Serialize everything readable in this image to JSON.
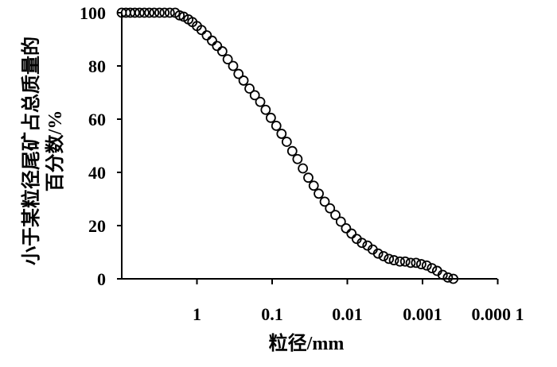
{
  "chart_data": {
    "type": "scatter",
    "x_scale": "log",
    "x_reversed": true,
    "x_range": [
      10,
      0.0001
    ],
    "ylim": [
      0,
      100
    ],
    "grid": false,
    "xlabel": "粒径/mm",
    "ylabel_lines": [
      "小于某粒径尾矿占总质量的",
      "百分数/%"
    ],
    "x_tick_labels": [
      {
        "value": 1,
        "label": "1"
      },
      {
        "value": 0.1,
        "label": "0.1"
      },
      {
        "value": 0.01,
        "label": "0.01"
      },
      {
        "value": 0.001,
        "label": "0.001"
      },
      {
        "value": 0.0001,
        "label": "0.000 1"
      }
    ],
    "y_tick_labels": [
      {
        "value": 0,
        "label": "0"
      },
      {
        "value": 20,
        "label": "20"
      },
      {
        "value": 40,
        "label": "40"
      },
      {
        "value": 60,
        "label": "60"
      },
      {
        "value": 80,
        "label": "80"
      },
      {
        "value": 100,
        "label": "100"
      }
    ],
    "marker": "open-circle",
    "color": "#000000",
    "series": [
      {
        "values": [
          [
            10.0,
            100
          ],
          [
            8.8,
            100
          ],
          [
            7.7,
            100
          ],
          [
            6.7,
            100
          ],
          [
            5.8,
            100
          ],
          [
            5.0,
            100
          ],
          [
            4.3,
            100
          ],
          [
            3.7,
            100
          ],
          [
            3.15,
            100
          ],
          [
            2.7,
            100
          ],
          [
            2.3,
            100
          ],
          [
            1.95,
            100
          ],
          [
            1.7,
            99.0
          ],
          [
            1.5,
            98.5
          ],
          [
            1.3,
            97.5
          ],
          [
            1.15,
            96.5
          ],
          [
            1.0,
            95.0
          ],
          [
            0.87,
            93.5
          ],
          [
            0.74,
            91.5
          ],
          [
            0.63,
            89.5
          ],
          [
            0.54,
            87.5
          ],
          [
            0.46,
            85.5
          ],
          [
            0.39,
            82.5
          ],
          [
            0.33,
            80.0
          ],
          [
            0.28,
            77.0
          ],
          [
            0.24,
            74.5
          ],
          [
            0.2,
            71.5
          ],
          [
            0.17,
            69.0
          ],
          [
            0.144,
            66.5
          ],
          [
            0.122,
            63.5
          ],
          [
            0.104,
            60.5
          ],
          [
            0.088,
            57.5
          ],
          [
            0.075,
            54.5
          ],
          [
            0.064,
            51.5
          ],
          [
            0.054,
            48.0
          ],
          [
            0.046,
            45.0
          ],
          [
            0.039,
            41.5
          ],
          [
            0.033,
            38.0
          ],
          [
            0.028,
            35.0
          ],
          [
            0.024,
            32.0
          ],
          [
            0.02,
            29.0
          ],
          [
            0.017,
            26.5
          ],
          [
            0.0144,
            24.0
          ],
          [
            0.0122,
            21.5
          ],
          [
            0.0104,
            19.0
          ],
          [
            0.0088,
            17.0
          ],
          [
            0.0075,
            15.0
          ],
          [
            0.0064,
            13.5
          ],
          [
            0.0054,
            12.5
          ],
          [
            0.0046,
            11.0
          ],
          [
            0.0039,
            9.5
          ],
          [
            0.0033,
            8.5
          ],
          [
            0.0028,
            7.5
          ],
          [
            0.0024,
            7.0
          ],
          [
            0.002,
            6.5
          ],
          [
            0.0017,
            6.5
          ],
          [
            0.00144,
            6.0
          ],
          [
            0.00122,
            6.0
          ],
          [
            0.00104,
            5.5
          ],
          [
            0.00088,
            5.0
          ],
          [
            0.00075,
            4.0
          ],
          [
            0.00064,
            3.0
          ],
          [
            0.00054,
            1.5
          ],
          [
            0.00046,
            0.5
          ],
          [
            0.00039,
            0.0
          ]
        ]
      }
    ]
  }
}
